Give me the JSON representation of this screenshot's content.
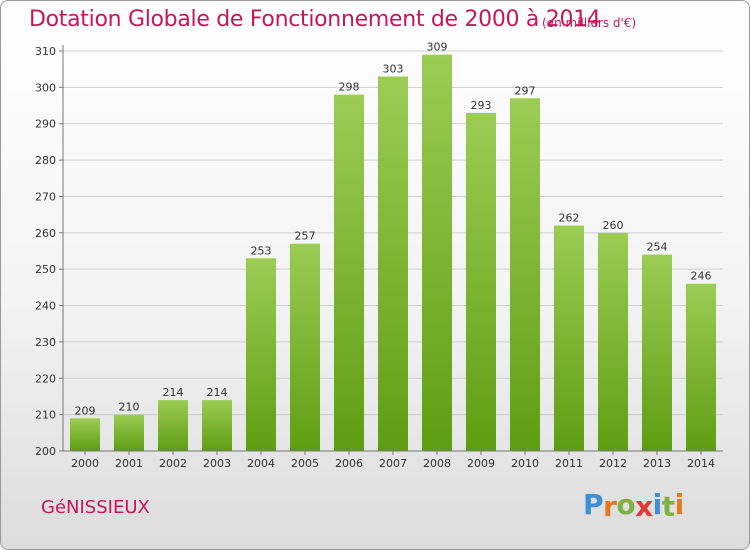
{
  "header": {
    "title": "Dotation Globale de Fonctionnement de 2000 à 2014",
    "unit_note": "(en milliers d'€)"
  },
  "footer": {
    "commune": "GéNISSIEUX",
    "brand": "Proxiti",
    "brand_colors": [
      "#3a8fd6",
      "#e87722",
      "#7cb342",
      "#e53935",
      "#3a8fd6",
      "#7cb342",
      "#e87722"
    ]
  },
  "colors": {
    "title": "#c2185b",
    "bar_top": "#9ccc54",
    "bar_bottom": "#5e9e12",
    "grid": "#cfcfcf",
    "axis": "#777777"
  },
  "chart_data": {
    "type": "bar",
    "title": "Dotation Globale de Fonctionnement de 2000 à 2014",
    "subtitle": "(en milliers d'€)",
    "xlabel": "",
    "ylabel": "",
    "categories": [
      "2000",
      "2001",
      "2002",
      "2003",
      "2004",
      "2005",
      "2006",
      "2007",
      "2008",
      "2009",
      "2010",
      "2011",
      "2012",
      "2013",
      "2014"
    ],
    "values": [
      209,
      210,
      214,
      214,
      253,
      257,
      298,
      303,
      309,
      293,
      297,
      262,
      260,
      254,
      246
    ],
    "ylim": [
      200,
      310
    ],
    "yticks": [
      200,
      210,
      220,
      230,
      240,
      250,
      260,
      270,
      280,
      290,
      300,
      310
    ],
    "grid": true,
    "data_labels": true
  }
}
